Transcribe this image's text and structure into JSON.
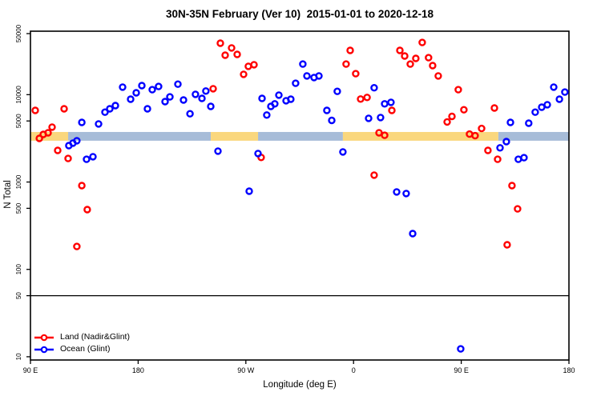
{
  "title": "30N-35N February (Ver 10)  2015-01-01 to 2020-12-18",
  "colors": {
    "land": "#ff0000",
    "ocean": "#0000ff",
    "band_orange": "#fad77d",
    "band_blue": "#a7bcd8",
    "axis": "#000000"
  },
  "chart_data": {
    "type": "scatter",
    "title": "30N-35N February (Ver 10)  2015-01-01 to 2020-12-18",
    "xlabel": "Longitude (deg E)",
    "ylabel": "N Total",
    "x_axis": {
      "note": "axis spans 450 deg wrapping: 90E -> 180 -> 90W -> 0 -> 90E -> 180",
      "range_deg": [
        0,
        450
      ],
      "ticks_deg": [
        0,
        90,
        180,
        270,
        360,
        450
      ],
      "tick_labels": [
        "90 E",
        "180",
        "90 W",
        "0",
        "90 E",
        "180"
      ]
    },
    "y_axis": {
      "scale": "log",
      "ticks": [
        10,
        50,
        100,
        500,
        1000,
        5000,
        10000,
        50000
      ],
      "tick_labels": [
        "10",
        "50",
        "100",
        "500",
        "1000",
        "5000",
        "10000",
        "50000"
      ],
      "range": [
        9,
        52000
      ]
    },
    "grid": false,
    "legend_position": "bottom-left",
    "reference_line_y": 50,
    "band": {
      "y_range": [
        2970,
        3740
      ],
      "segments": [
        {
          "from": 0,
          "to": 31.5,
          "color": "orange"
        },
        {
          "from": 31.5,
          "to": 150.7,
          "color": "blue"
        },
        {
          "from": 150.7,
          "to": 190.2,
          "color": "orange"
        },
        {
          "from": 190.2,
          "to": 261.1,
          "color": "blue"
        },
        {
          "from": 261.1,
          "to": 391.0,
          "color": "orange"
        },
        {
          "from": 391.0,
          "to": 450,
          "color": "blue"
        }
      ]
    },
    "series": [
      {
        "name": "Land (Nadir&Glint)",
        "color": "#ff0000",
        "points": [
          [
            4.0,
            6600
          ],
          [
            28.1,
            6890
          ],
          [
            7.4,
            3160
          ],
          [
            10.7,
            3510
          ],
          [
            14.7,
            3660
          ],
          [
            18.1,
            4250
          ],
          [
            22.8,
            2300
          ],
          [
            31.5,
            1860
          ],
          [
            42.9,
            910
          ],
          [
            47.5,
            483
          ],
          [
            38.8,
            183
          ],
          [
            158.7,
            38800
          ],
          [
            162.7,
            28300
          ],
          [
            168.1,
            34300
          ],
          [
            172.8,
            28900
          ],
          [
            178.1,
            17100
          ],
          [
            182.1,
            21100
          ],
          [
            186.8,
            22000
          ],
          [
            152.7,
            11700
          ],
          [
            192.8,
            1910
          ],
          [
            263.8,
            22400
          ],
          [
            267.2,
            32100
          ],
          [
            271.8,
            17400
          ],
          [
            275.9,
            8910
          ],
          [
            281.3,
            9290
          ],
          [
            291.3,
            3660
          ],
          [
            296.0,
            3430
          ],
          [
            302.0,
            6600
          ],
          [
            287.2,
            1200
          ],
          [
            308.7,
            32100
          ],
          [
            312.7,
            27700
          ],
          [
            317.4,
            22400
          ],
          [
            322.0,
            26000
          ],
          [
            327.4,
            39600
          ],
          [
            332.7,
            26500
          ],
          [
            336.1,
            21500
          ],
          [
            340.8,
            16400
          ],
          [
            348.2,
            4880
          ],
          [
            352.2,
            5640
          ],
          [
            357.5,
            11400
          ],
          [
            362.2,
            6710
          ],
          [
            366.9,
            3540
          ],
          [
            371.6,
            3390
          ],
          [
            377.0,
            4100
          ],
          [
            382.3,
            2300
          ],
          [
            387.7,
            7030
          ],
          [
            390.4,
            1820
          ],
          [
            402.4,
            910
          ],
          [
            407.1,
            493
          ],
          [
            398.4,
            191
          ]
        ]
      },
      {
        "name": "Ocean (Glint)",
        "color": "#0000ff",
        "points": [
          [
            42.9,
            4810
          ],
          [
            56.9,
            4620
          ],
          [
            62.3,
            6310
          ],
          [
            66.3,
            6890
          ],
          [
            71.0,
            7500
          ],
          [
            77.0,
            12200
          ],
          [
            83.7,
            8870
          ],
          [
            88.4,
            10500
          ],
          [
            93.1,
            12700
          ],
          [
            97.8,
            6890
          ],
          [
            101.8,
            11400
          ],
          [
            107.1,
            12400
          ],
          [
            112.5,
            8330
          ],
          [
            116.5,
            9440
          ],
          [
            123.2,
            13200
          ],
          [
            127.9,
            8690
          ],
          [
            133.3,
            6040
          ],
          [
            137.9,
            10100
          ],
          [
            143.3,
            9060
          ],
          [
            146.6,
            11000
          ],
          [
            150.7,
            7340
          ],
          [
            32.1,
            2610
          ],
          [
            35.5,
            2790
          ],
          [
            38.8,
            2970
          ],
          [
            46.9,
            1820
          ],
          [
            52.2,
            1950
          ],
          [
            156.7,
            2260
          ],
          [
            182.8,
            785
          ],
          [
            190.2,
            2120
          ],
          [
            193.5,
            9060
          ],
          [
            197.5,
            5840
          ],
          [
            200.9,
            7340
          ],
          [
            204.2,
            7850
          ],
          [
            207.6,
            9880
          ],
          [
            213.6,
            8530
          ],
          [
            217.6,
            8870
          ],
          [
            221.6,
            13500
          ],
          [
            227.6,
            22400
          ],
          [
            231.0,
            16400
          ],
          [
            237.0,
            15700
          ],
          [
            241.1,
            16400
          ],
          [
            247.7,
            6600
          ],
          [
            251.8,
            5070
          ],
          [
            256.4,
            10900
          ],
          [
            261.1,
            2210
          ],
          [
            282.6,
            5360
          ],
          [
            287.2,
            12000
          ],
          [
            292.6,
            5470
          ],
          [
            296.0,
            7850
          ],
          [
            301.3,
            8170
          ],
          [
            306.0,
            770
          ],
          [
            314.0,
            738
          ],
          [
            319.4,
            257
          ],
          [
            359.5,
            12.3
          ],
          [
            392.4,
            2460
          ],
          [
            397.7,
            2900
          ],
          [
            401.1,
            4810
          ],
          [
            407.7,
            1820
          ],
          [
            412.4,
            1900
          ],
          [
            416.4,
            4710
          ],
          [
            421.8,
            6310
          ],
          [
            427.2,
            7190
          ],
          [
            431.9,
            7670
          ],
          [
            437.3,
            12200
          ],
          [
            442.0,
            8870
          ],
          [
            446.6,
            10700
          ]
        ]
      }
    ]
  },
  "legend": {
    "items": [
      {
        "label": "Land (Nadir&Glint)"
      },
      {
        "label": "Ocean (Glint)"
      }
    ]
  }
}
